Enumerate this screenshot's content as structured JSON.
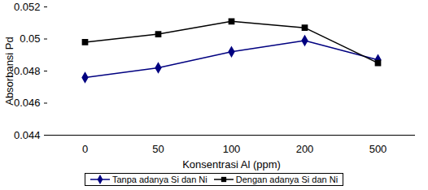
{
  "chart_data": {
    "type": "line",
    "x_label": "Konsentrasi Al (ppm)",
    "y_label": "Absorbansi Pd",
    "categories": [
      "0",
      "50",
      "100",
      "200",
      "500"
    ],
    "series": [
      {
        "name": "Tanpa adanya Si dan Ni",
        "color": "#000080",
        "marker": "diamond",
        "values": [
          0.0476,
          0.0482,
          0.0492,
          0.0499,
          0.0487
        ]
      },
      {
        "name": "Dengan adanya Si dan Ni",
        "color": "#000000",
        "marker": "square",
        "values": [
          0.0498,
          0.0503,
          0.0511,
          0.0507,
          0.0485
        ]
      }
    ],
    "ylim": [
      0.044,
      0.052
    ],
    "yticks": [
      0.044,
      0.046,
      0.048,
      0.05,
      0.052
    ],
    "grid": false,
    "legend": "bottom"
  }
}
